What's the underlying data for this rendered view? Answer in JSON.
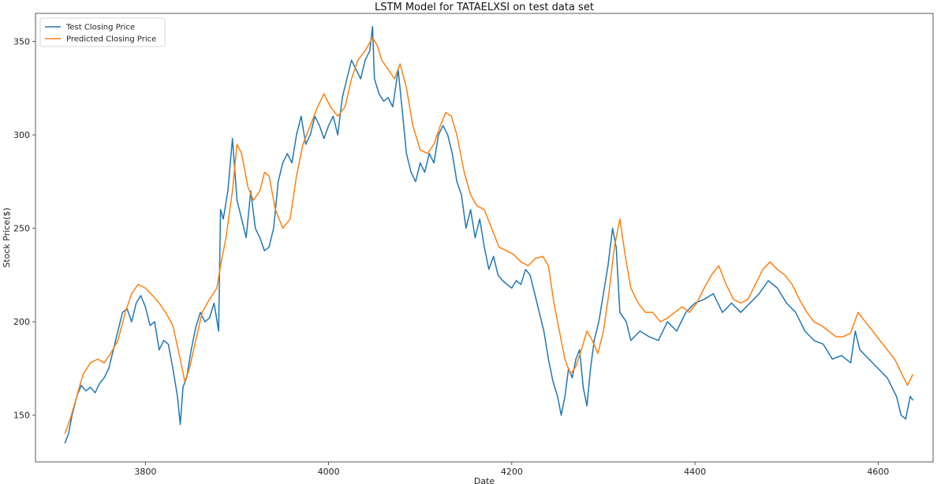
{
  "chart_data": {
    "type": "line",
    "title": "LSTM Model for TATAELXSI on test data set",
    "xlabel": "Date",
    "ylabel": "Stock Price($)",
    "xlim": [
      3680,
      4660
    ],
    "ylim": [
      125,
      365
    ],
    "xticks": [
      3800,
      4000,
      4200,
      4400,
      4600
    ],
    "yticks": [
      150,
      200,
      250,
      300,
      350
    ],
    "grid": false,
    "legend_position": "top-left",
    "series": [
      {
        "name": "Test Closing Price",
        "color": "#1f77b4",
        "points": [
          [
            3712,
            135
          ],
          [
            3716,
            140
          ],
          [
            3720,
            150
          ],
          [
            3725,
            160
          ],
          [
            3730,
            166
          ],
          [
            3735,
            163
          ],
          [
            3740,
            165
          ],
          [
            3745,
            162
          ],
          [
            3750,
            167
          ],
          [
            3755,
            170
          ],
          [
            3760,
            175
          ],
          [
            3765,
            185
          ],
          [
            3770,
            195
          ],
          [
            3775,
            205
          ],
          [
            3780,
            207
          ],
          [
            3785,
            200
          ],
          [
            3790,
            210
          ],
          [
            3795,
            214
          ],
          [
            3800,
            208
          ],
          [
            3805,
            198
          ],
          [
            3810,
            200
          ],
          [
            3815,
            185
          ],
          [
            3820,
            190
          ],
          [
            3825,
            188
          ],
          [
            3830,
            175
          ],
          [
            3835,
            160
          ],
          [
            3838,
            145
          ],
          [
            3841,
            165
          ],
          [
            3845,
            170
          ],
          [
            3850,
            185
          ],
          [
            3855,
            197
          ],
          [
            3860,
            205
          ],
          [
            3865,
            200
          ],
          [
            3870,
            202
          ],
          [
            3875,
            210
          ],
          [
            3880,
            195
          ],
          [
            3882,
            260
          ],
          [
            3885,
            255
          ],
          [
            3890,
            270
          ],
          [
            3895,
            298
          ],
          [
            3900,
            265
          ],
          [
            3905,
            255
          ],
          [
            3910,
            245
          ],
          [
            3915,
            270
          ],
          [
            3920,
            250
          ],
          [
            3925,
            245
          ],
          [
            3930,
            238
          ],
          [
            3935,
            240
          ],
          [
            3940,
            250
          ],
          [
            3945,
            275
          ],
          [
            3950,
            285
          ],
          [
            3955,
            290
          ],
          [
            3960,
            285
          ],
          [
            3965,
            300
          ],
          [
            3970,
            310
          ],
          [
            3975,
            295
          ],
          [
            3980,
            300
          ],
          [
            3985,
            310
          ],
          [
            3990,
            305
          ],
          [
            3995,
            298
          ],
          [
            4000,
            305
          ],
          [
            4005,
            310
          ],
          [
            4010,
            300
          ],
          [
            4015,
            320
          ],
          [
            4020,
            330
          ],
          [
            4025,
            340
          ],
          [
            4030,
            335
          ],
          [
            4035,
            330
          ],
          [
            4040,
            340
          ],
          [
            4045,
            345
          ],
          [
            4048,
            358
          ],
          [
            4050,
            330
          ],
          [
            4055,
            322
          ],
          [
            4060,
            318
          ],
          [
            4065,
            320
          ],
          [
            4070,
            315
          ],
          [
            4073,
            325
          ],
          [
            4076,
            335
          ],
          [
            4080,
            315
          ],
          [
            4085,
            290
          ],
          [
            4090,
            280
          ],
          [
            4095,
            275
          ],
          [
            4100,
            285
          ],
          [
            4105,
            280
          ],
          [
            4110,
            290
          ],
          [
            4115,
            285
          ],
          [
            4120,
            300
          ],
          [
            4125,
            305
          ],
          [
            4130,
            300
          ],
          [
            4135,
            290
          ],
          [
            4140,
            275
          ],
          [
            4145,
            268
          ],
          [
            4150,
            250
          ],
          [
            4155,
            260
          ],
          [
            4160,
            245
          ],
          [
            4165,
            255
          ],
          [
            4170,
            240
          ],
          [
            4175,
            228
          ],
          [
            4180,
            235
          ],
          [
            4185,
            225
          ],
          [
            4190,
            222
          ],
          [
            4195,
            220
          ],
          [
            4200,
            218
          ],
          [
            4205,
            222
          ],
          [
            4210,
            220
          ],
          [
            4215,
            228
          ],
          [
            4220,
            225
          ],
          [
            4225,
            215
          ],
          [
            4230,
            205
          ],
          [
            4235,
            195
          ],
          [
            4240,
            180
          ],
          [
            4245,
            168
          ],
          [
            4250,
            160
          ],
          [
            4254,
            150
          ],
          [
            4258,
            160
          ],
          [
            4262,
            175
          ],
          [
            4266,
            170
          ],
          [
            4270,
            180
          ],
          [
            4274,
            185
          ],
          [
            4278,
            165
          ],
          [
            4282,
            155
          ],
          [
            4286,
            175
          ],
          [
            4290,
            190
          ],
          [
            4295,
            200
          ],
          [
            4300,
            215
          ],
          [
            4305,
            230
          ],
          [
            4310,
            250
          ],
          [
            4314,
            240
          ],
          [
            4318,
            205
          ],
          [
            4325,
            200
          ],
          [
            4330,
            190
          ],
          [
            4340,
            195
          ],
          [
            4350,
            192
          ],
          [
            4360,
            190
          ],
          [
            4370,
            200
          ],
          [
            4380,
            195
          ],
          [
            4390,
            205
          ],
          [
            4400,
            210
          ],
          [
            4410,
            212
          ],
          [
            4420,
            215
          ],
          [
            4430,
            205
          ],
          [
            4440,
            210
          ],
          [
            4450,
            205
          ],
          [
            4460,
            210
          ],
          [
            4470,
            215
          ],
          [
            4480,
            222
          ],
          [
            4490,
            218
          ],
          [
            4500,
            210
          ],
          [
            4510,
            205
          ],
          [
            4520,
            195
          ],
          [
            4530,
            190
          ],
          [
            4540,
            188
          ],
          [
            4550,
            180
          ],
          [
            4560,
            182
          ],
          [
            4570,
            178
          ],
          [
            4575,
            195
          ],
          [
            4580,
            185
          ],
          [
            4590,
            180
          ],
          [
            4600,
            175
          ],
          [
            4610,
            170
          ],
          [
            4620,
            160
          ],
          [
            4625,
            150
          ],
          [
            4630,
            148
          ],
          [
            4635,
            160
          ],
          [
            4638,
            158
          ]
        ]
      },
      {
        "name": "Predicted Closing Price",
        "color": "#ff7f0e",
        "points": [
          [
            3712,
            140
          ],
          [
            3718,
            148
          ],
          [
            3725,
            160
          ],
          [
            3732,
            172
          ],
          [
            3740,
            178
          ],
          [
            3748,
            180
          ],
          [
            3755,
            178
          ],
          [
            3762,
            183
          ],
          [
            3770,
            190
          ],
          [
            3778,
            205
          ],
          [
            3785,
            215
          ],
          [
            3792,
            220
          ],
          [
            3800,
            218
          ],
          [
            3808,
            214
          ],
          [
            3815,
            210
          ],
          [
            3822,
            205
          ],
          [
            3830,
            198
          ],
          [
            3838,
            180
          ],
          [
            3843,
            168
          ],
          [
            3848,
            175
          ],
          [
            3855,
            190
          ],
          [
            3862,
            205
          ],
          [
            3870,
            212
          ],
          [
            3878,
            218
          ],
          [
            3882,
            230
          ],
          [
            3888,
            245
          ],
          [
            3895,
            270
          ],
          [
            3900,
            295
          ],
          [
            3905,
            290
          ],
          [
            3912,
            272
          ],
          [
            3918,
            265
          ],
          [
            3925,
            270
          ],
          [
            3930,
            280
          ],
          [
            3935,
            278
          ],
          [
            3942,
            260
          ],
          [
            3950,
            250
          ],
          [
            3958,
            255
          ],
          [
            3965,
            278
          ],
          [
            3972,
            295
          ],
          [
            3980,
            305
          ],
          [
            3988,
            315
          ],
          [
            3995,
            322
          ],
          [
            4002,
            315
          ],
          [
            4010,
            310
          ],
          [
            4018,
            315
          ],
          [
            4025,
            330
          ],
          [
            4032,
            340
          ],
          [
            4040,
            345
          ],
          [
            4048,
            352
          ],
          [
            4053,
            348
          ],
          [
            4058,
            340
          ],
          [
            4065,
            335
          ],
          [
            4072,
            330
          ],
          [
            4078,
            338
          ],
          [
            4085,
            325
          ],
          [
            4092,
            305
          ],
          [
            4100,
            292
          ],
          [
            4108,
            290
          ],
          [
            4115,
            295
          ],
          [
            4122,
            305
          ],
          [
            4128,
            312
          ],
          [
            4134,
            310
          ],
          [
            4140,
            300
          ],
          [
            4148,
            280
          ],
          [
            4155,
            268
          ],
          [
            4162,
            262
          ],
          [
            4170,
            260
          ],
          [
            4178,
            250
          ],
          [
            4186,
            240
          ],
          [
            4194,
            238
          ],
          [
            4202,
            236
          ],
          [
            4210,
            232
          ],
          [
            4218,
            230
          ],
          [
            4226,
            234
          ],
          [
            4234,
            235
          ],
          [
            4240,
            230
          ],
          [
            4246,
            210
          ],
          [
            4252,
            195
          ],
          [
            4258,
            180
          ],
          [
            4264,
            172
          ],
          [
            4270,
            176
          ],
          [
            4276,
            185
          ],
          [
            4282,
            195
          ],
          [
            4288,
            190
          ],
          [
            4294,
            183
          ],
          [
            4300,
            195
          ],
          [
            4306,
            215
          ],
          [
            4312,
            240
          ],
          [
            4318,
            255
          ],
          [
            4324,
            235
          ],
          [
            4330,
            218
          ],
          [
            4338,
            210
          ],
          [
            4346,
            205
          ],
          [
            4354,
            205
          ],
          [
            4362,
            200
          ],
          [
            4370,
            202
          ],
          [
            4378,
            205
          ],
          [
            4386,
            208
          ],
          [
            4394,
            205
          ],
          [
            4402,
            210
          ],
          [
            4410,
            218
          ],
          [
            4418,
            225
          ],
          [
            4426,
            230
          ],
          [
            4434,
            220
          ],
          [
            4442,
            212
          ],
          [
            4450,
            210
          ],
          [
            4458,
            212
          ],
          [
            4466,
            220
          ],
          [
            4474,
            228
          ],
          [
            4482,
            232
          ],
          [
            4490,
            228
          ],
          [
            4498,
            225
          ],
          [
            4506,
            220
          ],
          [
            4514,
            212
          ],
          [
            4522,
            205
          ],
          [
            4530,
            200
          ],
          [
            4538,
            198
          ],
          [
            4546,
            195
          ],
          [
            4554,
            192
          ],
          [
            4562,
            192
          ],
          [
            4570,
            194
          ],
          [
            4578,
            205
          ],
          [
            4586,
            200
          ],
          [
            4594,
            195
          ],
          [
            4602,
            190
          ],
          [
            4610,
            185
          ],
          [
            4618,
            180
          ],
          [
            4626,
            172
          ],
          [
            4632,
            166
          ],
          [
            4638,
            172
          ]
        ]
      }
    ]
  }
}
